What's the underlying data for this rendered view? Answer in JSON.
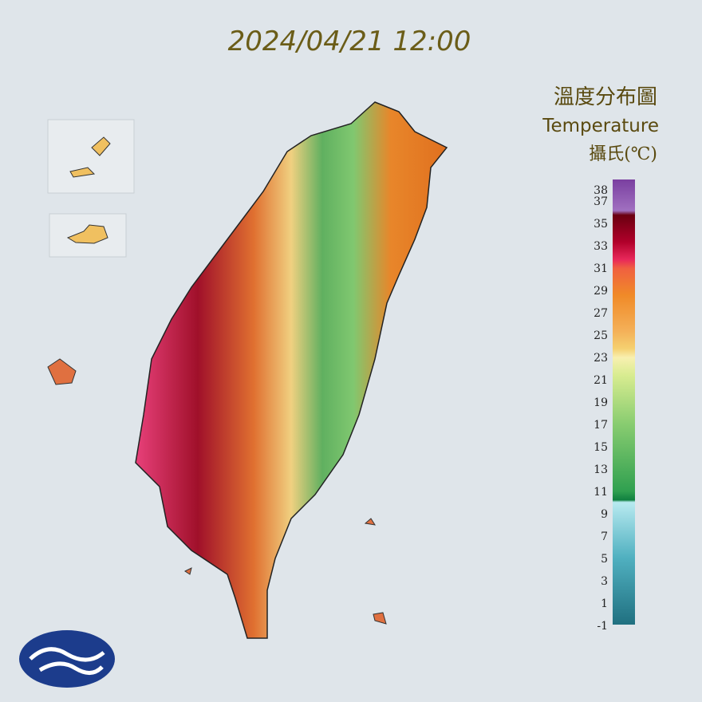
{
  "header": {
    "timestamp": "2024/04/21 12:00"
  },
  "legend": {
    "title": "溫度分布圖",
    "subtitle": "Temperature",
    "unit": "攝氏(℃)",
    "ticks": [
      38,
      37,
      35,
      33,
      31,
      29,
      27,
      25,
      23,
      21,
      19,
      17,
      15,
      13,
      11,
      9,
      7,
      5,
      3,
      1,
      -1
    ]
  }
}
